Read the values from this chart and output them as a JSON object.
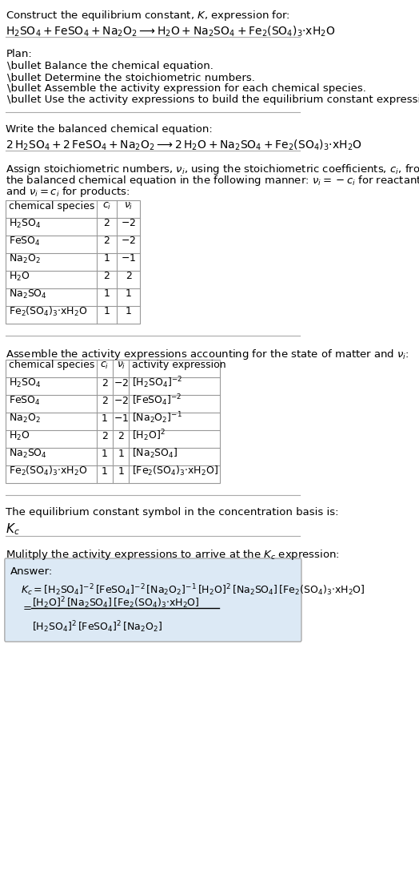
{
  "bg_color": "#ffffff",
  "title_line1": "Construct the equilibrium constant, $K$, expression for:",
  "title_line2": "$\\mathrm{H_2SO_4 + FeSO_4 + Na_2O_2 \\longrightarrow H_2O + Na_2SO_4 + Fe_2(SO_4)_3{\\cdot}xH_2O}$",
  "plan_header": "Plan:",
  "plan_items": [
    "\\bullet Balance the chemical equation.",
    "\\bullet Determine the stoichiometric numbers.",
    "\\bullet Assemble the activity expression for each chemical species.",
    "\\bullet Use the activity expressions to build the equilibrium constant expression."
  ],
  "balanced_eq_header": "Write the balanced chemical equation:",
  "balanced_eq": "$\\mathrm{2\\,H_2SO_4 + 2\\,FeSO_4 + Na_2O_2 \\longrightarrow 2\\,H_2O + Na_2SO_4 + Fe_2(SO_4)_3{\\cdot}xH_2O}$",
  "stoich_header": "Assign stoichiometric numbers, $\\nu_i$, using the stoichiometric coefficients, $c_i$, from\nthe balanced chemical equation in the following manner: $\\nu_i = -c_i$ for reactants\nand $\\nu_i = c_i$ for products:",
  "table1_headers": [
    "chemical species",
    "$c_i$",
    "$\\nu_i$"
  ],
  "table1_rows": [
    [
      "$\\mathrm{H_2SO_4}$",
      "2",
      "$-2$"
    ],
    [
      "$\\mathrm{FeSO_4}$",
      "2",
      "$-2$"
    ],
    [
      "$\\mathrm{Na_2O_2}$",
      "1",
      "$-1$"
    ],
    [
      "$\\mathrm{H_2O}$",
      "2",
      "2"
    ],
    [
      "$\\mathrm{Na_2SO_4}$",
      "1",
      "1"
    ],
    [
      "$\\mathrm{Fe_2(SO_4)_3{\\cdot}xH_2O}$",
      "1",
      "1"
    ]
  ],
  "activity_header": "Assemble the activity expressions accounting for the state of matter and $\\nu_i$:",
  "table2_headers": [
    "chemical species",
    "$c_i$",
    "$\\nu_i$",
    "activity expression"
  ],
  "table2_rows": [
    [
      "$\\mathrm{H_2SO_4}$",
      "2",
      "$-2$",
      "$[\\mathrm{H_2SO_4}]^{-2}$"
    ],
    [
      "$\\mathrm{FeSO_4}$",
      "2",
      "$-2$",
      "$[\\mathrm{FeSO_4}]^{-2}$"
    ],
    [
      "$\\mathrm{Na_2O_2}$",
      "1",
      "$-1$",
      "$[\\mathrm{Na_2O_2}]^{-1}$"
    ],
    [
      "$\\mathrm{H_2O}$",
      "2",
      "2",
      "$[\\mathrm{H_2O}]^2$"
    ],
    [
      "$\\mathrm{Na_2SO_4}$",
      "1",
      "1",
      "$[\\mathrm{Na_2SO_4}]$"
    ],
    [
      "$\\mathrm{Fe_2(SO_4)_3{\\cdot}xH_2O}$",
      "1",
      "1",
      "$[\\mathrm{Fe_2(SO_4)_3{\\cdot}xH_2O}]$"
    ]
  ],
  "kc_header": "The equilibrium constant symbol in the concentration basis is:",
  "kc_symbol": "$K_c$",
  "multiply_header": "Mulitply the activity expressions to arrive at the $K_c$ expression:",
  "answer_label": "Answer:",
  "answer_line1": "$K_c = [\\mathrm{H_2SO_4}]^{-2}\\,[\\mathrm{FeSO_4}]^{-2}\\,[\\mathrm{Na_2O_2}]^{-1}\\,[\\mathrm{H_2O}]^2\\,[\\mathrm{Na_2SO_4}]\\,[\\mathrm{Fe_2(SO_4)_3{\\cdot}xH_2O}]$",
  "answer_line2_num": "$[\\mathrm{H_2O}]^2\\,[\\mathrm{Na_2SO_4}]\\,[\\mathrm{Fe_2(SO_4)_3{\\cdot}xH_2O}]$",
  "answer_line2_den": "$[\\mathrm{H_2SO_4}]^2\\,[\\mathrm{FeSO_4}]^2\\,[\\mathrm{Na_2O_2}]$",
  "answer_box_color": "#dce9f5",
  "table_border_color": "#999999",
  "text_color": "#000000",
  "font_size": 9.5
}
